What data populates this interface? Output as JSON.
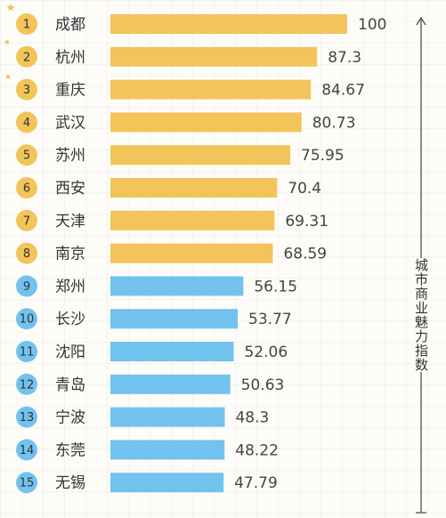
{
  "chart_data": {
    "type": "bar",
    "orientation": "horizontal",
    "categories": [
      "成都",
      "杭州",
      "重庆",
      "武汉",
      "苏州",
      "西安",
      "天津",
      "南京",
      "郑州",
      "长沙",
      "沈阳",
      "青岛",
      "宁波",
      "东莞",
      "无锡"
    ],
    "ranks": [
      "1",
      "2",
      "3",
      "4",
      "5",
      "6",
      "7",
      "8",
      "9",
      "10",
      "11",
      "12",
      "13",
      "14",
      "15"
    ],
    "values": [
      100,
      87.3,
      84.67,
      80.73,
      75.95,
      70.4,
      69.31,
      68.59,
      56.15,
      53.77,
      52.06,
      50.63,
      48.3,
      48.22,
      47.79
    ],
    "value_labels": [
      "100",
      "87.3",
      "84.67",
      "80.73",
      "75.95",
      "70.4",
      "69.31",
      "68.59",
      "56.15",
      "53.77",
      "52.06",
      "50.63",
      "48.3",
      "48.22",
      "47.79"
    ],
    "group_colors": {
      "top": "#f2c45a",
      "rest": "#72c2ee"
    },
    "top_group_size": 8,
    "axis_title": "城市商业魅力指数",
    "xlim": [
      0,
      100
    ]
  }
}
